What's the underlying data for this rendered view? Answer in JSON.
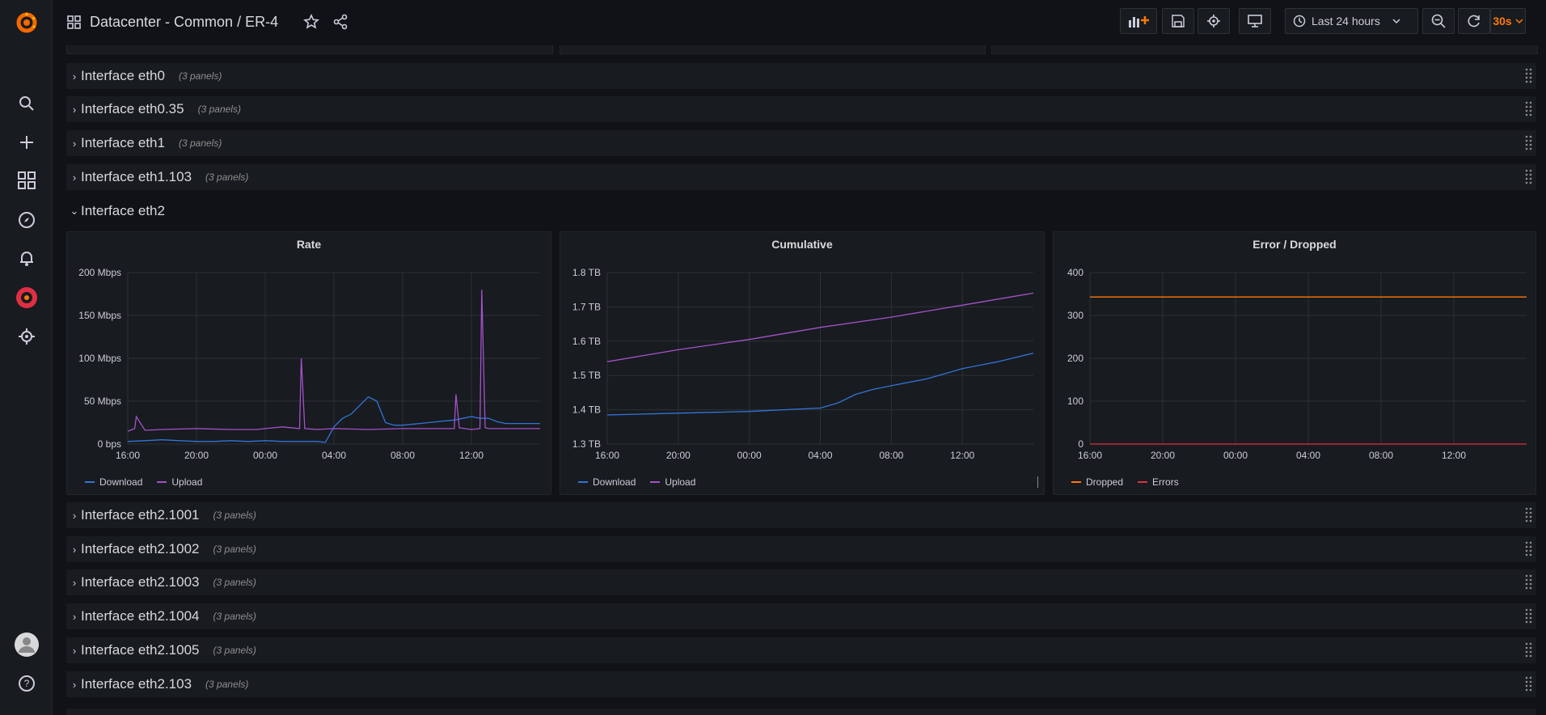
{
  "header": {
    "title": "Datacenter - Common / ER-4",
    "time_range": "Last 24 hours",
    "refresh": "30s"
  },
  "rows": [
    {
      "title": "Interface eth0",
      "count": "(3 panels)"
    },
    {
      "title": "Interface eth0.35",
      "count": "(3 panels)"
    },
    {
      "title": "Interface eth1",
      "count": "(3 panels)"
    },
    {
      "title": "Interface eth1.103",
      "count": "(3 panels)"
    }
  ],
  "open_row": {
    "title": "Interface eth2"
  },
  "rows_after": [
    {
      "title": "Interface eth2.1001",
      "count": "(3 panels)"
    },
    {
      "title": "Interface eth2.1002",
      "count": "(3 panels)"
    },
    {
      "title": "Interface eth2.1003",
      "count": "(3 panels)"
    },
    {
      "title": "Interface eth2.1004",
      "count": "(3 panels)"
    },
    {
      "title": "Interface eth2.1005",
      "count": "(3 panels)"
    },
    {
      "title": "Interface eth2.103",
      "count": "(3 panels)"
    }
  ],
  "colors": {
    "download": "#3274d9",
    "upload": "#a352cc",
    "dropped": "#ff780a",
    "errors": "#e02f44",
    "accent": "#ff780a"
  },
  "chart_data": [
    {
      "type": "line",
      "title": "Rate",
      "x_ticks": [
        "16:00",
        "20:00",
        "00:00",
        "04:00",
        "08:00",
        "12:00"
      ],
      "y_ticks": [
        "0 bps",
        "50 Mbps",
        "100 Mbps",
        "150 Mbps",
        "200 Mbps"
      ],
      "ylim": [
        0,
        200
      ],
      "y_unit": "Mbps",
      "x_range_hours": [
        0,
        24
      ],
      "series": [
        {
          "name": "Download",
          "color": "#3274d9",
          "x": [
            0,
            1,
            2,
            3,
            4,
            5,
            6,
            7,
            8,
            9,
            10,
            10.5,
            11,
            11.5,
            12,
            12.5,
            13,
            13.5,
            14,
            14.5,
            15,
            15.5,
            16,
            17,
            18,
            19,
            20,
            20.5,
            21,
            21.5,
            22,
            23,
            24
          ],
          "values": [
            3,
            4,
            5,
            4,
            3,
            3,
            4,
            3,
            4,
            3,
            3,
            3,
            3,
            2,
            20,
            30,
            35,
            45,
            55,
            50,
            25,
            22,
            22,
            24,
            26,
            28,
            32,
            30,
            30,
            26,
            24,
            24,
            24
          ]
        },
        {
          "name": "Upload",
          "color": "#a352cc",
          "x": [
            0,
            0.4,
            0.5,
            1,
            2,
            4,
            6,
            7.5,
            8,
            9,
            10,
            10.1,
            10.3,
            11,
            12,
            14,
            16,
            18,
            19,
            19.1,
            19.3,
            20,
            20.5,
            20.6,
            20.8,
            21,
            22,
            24
          ],
          "values": [
            15,
            18,
            32,
            16,
            17,
            18,
            17,
            17,
            18,
            20,
            18,
            100,
            18,
            17,
            18,
            17,
            18,
            18,
            18,
            58,
            19,
            17,
            18,
            180,
            19,
            18,
            18,
            18
          ]
        }
      ],
      "legend": [
        "Download",
        "Upload"
      ]
    },
    {
      "type": "line",
      "title": "Cumulative",
      "x_ticks": [
        "16:00",
        "20:00",
        "00:00",
        "04:00",
        "08:00",
        "12:00"
      ],
      "y_ticks": [
        "1.3 TB",
        "1.4 TB",
        "1.5 TB",
        "1.6 TB",
        "1.7 TB",
        "1.8 TB"
      ],
      "ylim": [
        1.3,
        1.8
      ],
      "y_unit": "TB",
      "x_range_hours": [
        0,
        24
      ],
      "series": [
        {
          "name": "Download",
          "color": "#3274d9",
          "x": [
            0,
            4,
            8,
            12,
            13,
            14,
            15,
            16,
            18,
            20,
            21,
            22,
            24
          ],
          "values": [
            1.385,
            1.39,
            1.395,
            1.405,
            1.42,
            1.445,
            1.46,
            1.47,
            1.49,
            1.52,
            1.53,
            1.54,
            1.565
          ]
        },
        {
          "name": "Upload",
          "color": "#a352cc",
          "x": [
            0,
            4,
            8,
            12,
            16,
            20,
            24
          ],
          "values": [
            1.54,
            1.575,
            1.605,
            1.64,
            1.67,
            1.705,
            1.74
          ]
        }
      ],
      "legend": [
        "Download",
        "Upload"
      ]
    },
    {
      "type": "line",
      "title": "Error / Dropped",
      "x_ticks": [
        "16:00",
        "20:00",
        "00:00",
        "04:00",
        "08:00",
        "12:00"
      ],
      "y_ticks": [
        "0",
        "100",
        "200",
        "300",
        "400"
      ],
      "ylim": [
        0,
        400
      ],
      "x_range_hours": [
        0,
        24
      ],
      "series": [
        {
          "name": "Dropped",
          "color": "#ff780a",
          "x": [
            0,
            24
          ],
          "values": [
            343,
            343
          ]
        },
        {
          "name": "Errors",
          "color": "#e02f44",
          "x": [
            0,
            24
          ],
          "values": [
            0,
            0
          ]
        }
      ],
      "legend": [
        "Dropped",
        "Errors"
      ]
    }
  ]
}
